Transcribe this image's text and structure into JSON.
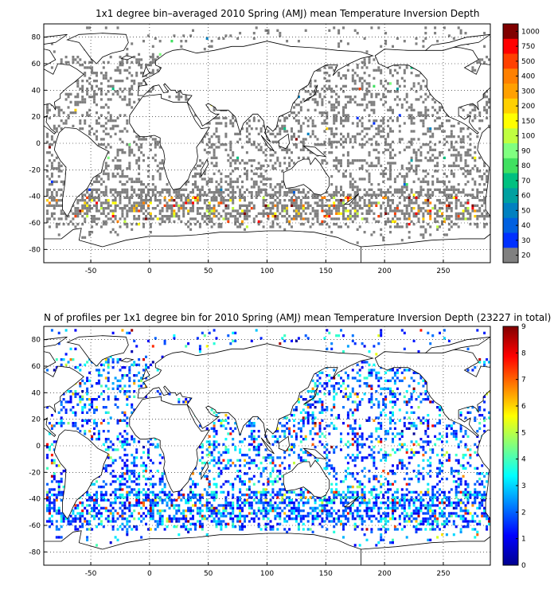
{
  "panel1": {
    "title": "1x1 degree bin–averaged 2010 Spring (AMJ) mean Temperature Inversion Depth",
    "x_ticks": [
      "-50",
      "0",
      "50",
      "100",
      "150",
      "200",
      "250"
    ],
    "y_ticks": [
      "80",
      "60",
      "40",
      "20",
      "0",
      "-20",
      "-40",
      "-60",
      "-80"
    ],
    "colorbar_labels": [
      "1000",
      "750",
      "500",
      "400",
      "300",
      "200",
      "150",
      "100",
      "90",
      "80",
      "70",
      "60",
      "50",
      "40",
      "30",
      "20"
    ],
    "colorbar_colors": [
      "#800000",
      "#ff0000",
      "#ff4000",
      "#ff8000",
      "#ffa000",
      "#ffd000",
      "#ffff00",
      "#c0ff40",
      "#80ff80",
      "#40e060",
      "#00c080",
      "#00a0a0",
      "#0080c0",
      "#0060e0",
      "#0030ff",
      "#808080"
    ]
  },
  "panel2": {
    "title": "N of profiles per 1x1 degree bin for 2010 Spring (AMJ) mean Temperature Inversion Depth  (23227 in total)",
    "x_ticks": [
      "-50",
      "0",
      "50",
      "100",
      "150",
      "200",
      "250"
    ],
    "y_ticks": [
      "80",
      "60",
      "40",
      "20",
      "0",
      "-20",
      "-40",
      "-60",
      "-80"
    ],
    "colorbar_labels": [
      "9",
      "8",
      "7",
      "6",
      "5",
      "4",
      "3",
      "2",
      "1",
      "0"
    ]
  },
  "chart_data": [
    {
      "type": "heatmap",
      "title": "1x1 degree bin–averaged 2010 Spring (AMJ) mean Temperature Inversion Depth",
      "xlim": [
        -90,
        290
      ],
      "ylim": [
        -90,
        90
      ],
      "x_ticks": [
        -50,
        0,
        50,
        100,
        150,
        200,
        250
      ],
      "y_ticks": [
        80,
        60,
        40,
        20,
        0,
        -20,
        -40,
        -60,
        -80
      ],
      "grid": true,
      "colorbar_ticks": [
        20,
        30,
        40,
        50,
        60,
        70,
        80,
        90,
        100,
        150,
        200,
        300,
        400,
        500,
        750,
        1000
      ]
    },
    {
      "type": "heatmap",
      "title": "N of profiles per 1x1 degree bin for 2010 Spring (AMJ) mean Temperature Inversion Depth  (23227 in total)",
      "total_profiles": 23227,
      "xlim": [
        -90,
        290
      ],
      "ylim": [
        -90,
        90
      ],
      "x_ticks": [
        -50,
        0,
        50,
        100,
        150,
        200,
        250
      ],
      "y_ticks": [
        80,
        60,
        40,
        20,
        0,
        -20,
        -40,
        -60,
        -80
      ],
      "grid": true,
      "colorbar_range": [
        0,
        9
      ],
      "colorbar_ticks": [
        0,
        1,
        2,
        3,
        4,
        5,
        6,
        7,
        8,
        9
      ]
    }
  ]
}
